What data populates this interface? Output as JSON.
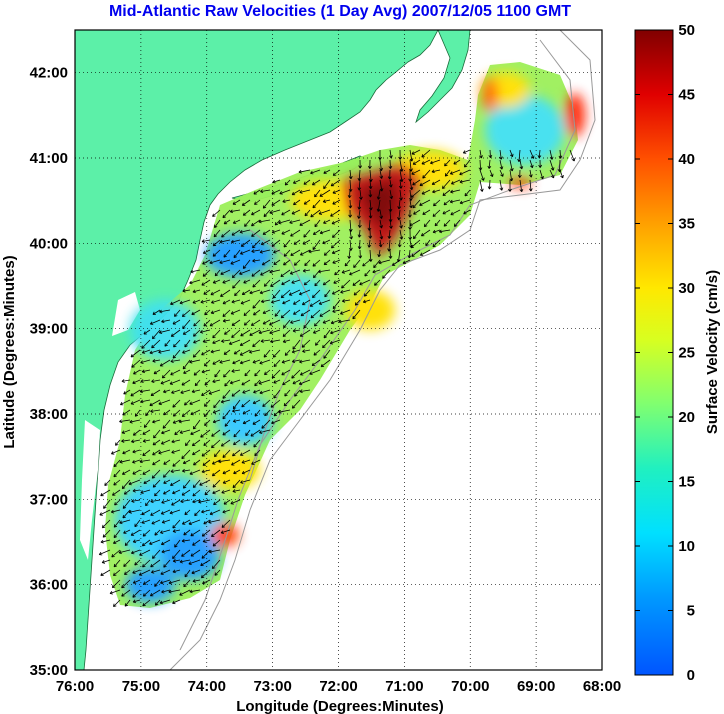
{
  "title": "Mid-Atlantic Raw Velocities (1 Day Avg) 2007/12/05 1100 GMT",
  "axes": {
    "x_label": "Longitude (Degrees:Minutes)",
    "y_label": "Latitude (Degrees:Minutes)",
    "x_ticks": [
      "76:00",
      "75:00",
      "74:00",
      "73:00",
      "72:00",
      "71:00",
      "70:00",
      "69:00",
      "68:00"
    ],
    "y_ticks": [
      "35:00",
      "36:00",
      "37:00",
      "38:00",
      "39:00",
      "40:00",
      "41:00",
      "42:00"
    ],
    "lon_range": [
      -76,
      -68
    ],
    "lat_range": [
      35,
      42.5
    ],
    "grid": "dotted"
  },
  "colorbar": {
    "label": "Surface Velocity (cm/s)",
    "ticks": [
      "0",
      "5",
      "10",
      "15",
      "20",
      "25",
      "30",
      "35",
      "40",
      "45",
      "50"
    ],
    "range": [
      0,
      50
    ],
    "colormap": "jet"
  },
  "colors": {
    "land": "#5cf0a8",
    "ocean_background": "#ffffff",
    "title": "#0000ee",
    "arrows": "#000000",
    "bathymetry_contours": "#999999"
  }
}
